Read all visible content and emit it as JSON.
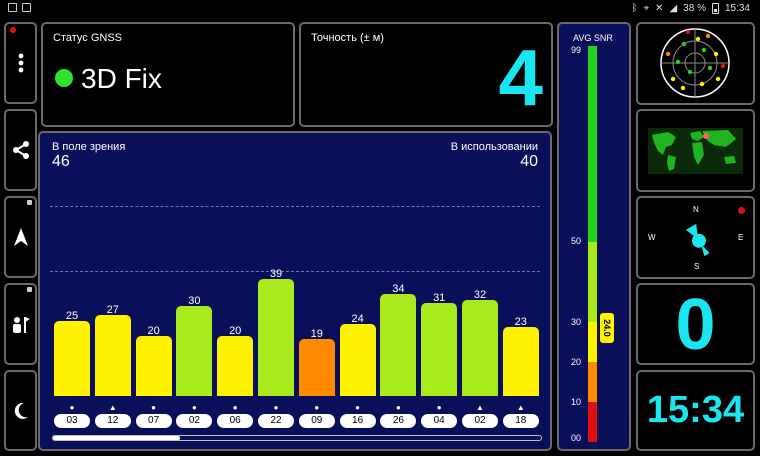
{
  "status_bar": {
    "battery_percent": "38 %",
    "time": "15:34"
  },
  "gnss_status": {
    "label": "Статус GNSS",
    "value": "3D Fix",
    "fix_color": "#2fe32f"
  },
  "accuracy": {
    "label": "Точность (± м)",
    "value": "4"
  },
  "sky": {
    "in_view_label": "В поле зрения",
    "in_view_count": "46",
    "in_use_label": "В использовании",
    "in_use_count": "40",
    "scroll_progress": 0.26,
    "satellites": [
      {
        "id": "03",
        "snr": 25,
        "marker": "●",
        "color": "#fff200"
      },
      {
        "id": "12",
        "snr": 27,
        "marker": "▲",
        "color": "#fff200"
      },
      {
        "id": "07",
        "snr": 20,
        "marker": "●",
        "color": "#fff200"
      },
      {
        "id": "02",
        "snr": 30,
        "marker": "●",
        "color": "#a8ea1c"
      },
      {
        "id": "06",
        "snr": 20,
        "marker": "●",
        "color": "#fff200"
      },
      {
        "id": "22",
        "snr": 39,
        "marker": "●",
        "color": "#a8ea1c"
      },
      {
        "id": "09",
        "snr": 19,
        "marker": "●",
        "color": "#ff8a00"
      },
      {
        "id": "16",
        "snr": 24,
        "marker": "●",
        "color": "#fff200"
      },
      {
        "id": "26",
        "snr": 34,
        "marker": "●",
        "color": "#a8ea1c"
      },
      {
        "id": "04",
        "snr": 31,
        "marker": "●",
        "color": "#a8ea1c"
      },
      {
        "id": "02",
        "snr": 32,
        "marker": "▲",
        "color": "#a8ea1c"
      },
      {
        "id": "18",
        "snr": 23,
        "marker": "▲",
        "color": "#fff200"
      }
    ]
  },
  "snr_gauge": {
    "title": "AVG SNR",
    "avg_value": "24.0",
    "avg": 24.0,
    "ticks": [
      "99",
      "50",
      "30",
      "20",
      "10",
      "00"
    ]
  },
  "compass": {
    "north": "N",
    "south": "S",
    "east": "E",
    "west": "W",
    "heading_deg": 330
  },
  "speed": {
    "value": "0"
  },
  "clock": {
    "value": "15:34"
  },
  "icons": {
    "menu": "more-vertical-icon",
    "share": "share-icon",
    "navigate": "navigation-arrow-icon",
    "group": "users-flag-icon",
    "night": "moon-icon"
  }
}
